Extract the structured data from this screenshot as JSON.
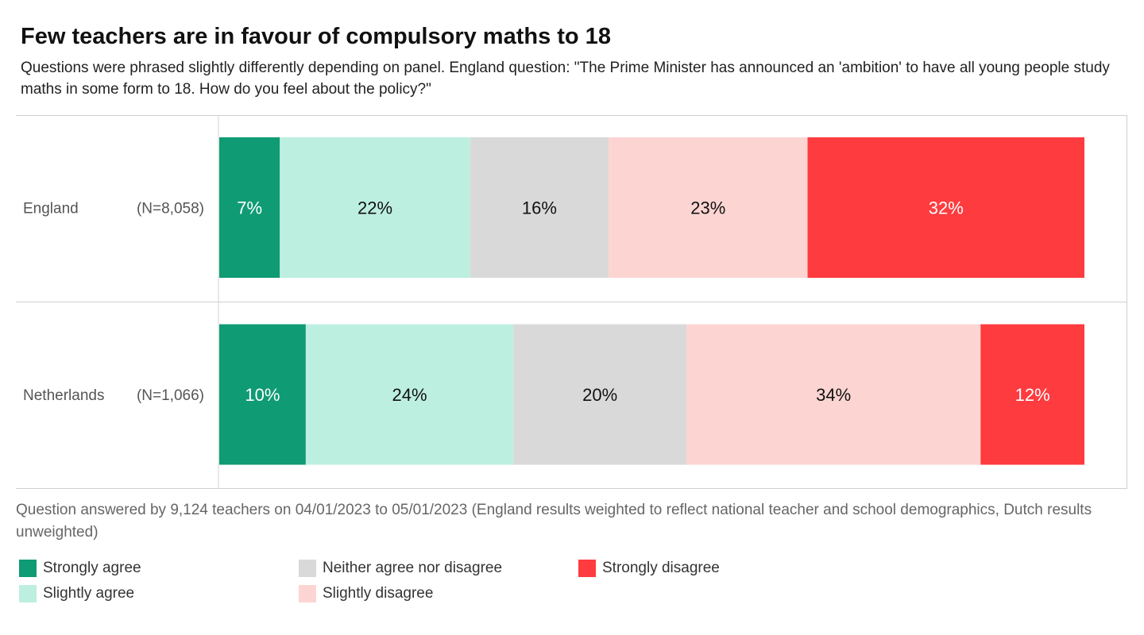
{
  "chart_data": {
    "type": "bar",
    "orientation": "horizontal",
    "stacked": true,
    "title": "Few teachers are in favour of compulsory maths to 18",
    "subtitle": "Questions were phrased slightly differently depending on panel. England question: \"The Prime Minister has announced an 'ambition' to have all young people study maths in some form to 18. How do you feel about the policy?\"",
    "categories": [
      {
        "name": "England",
        "n": "(N=8,058)"
      },
      {
        "name": "Netherlands",
        "n": "(N=1,066)"
      }
    ],
    "series": [
      {
        "name": "Strongly agree",
        "color": "#0f9b74",
        "text_color": "#ffffff",
        "values": [
          7,
          10
        ],
        "labels": [
          "7%",
          "10%"
        ]
      },
      {
        "name": "Slightly agree",
        "color": "#bdefe0",
        "text_color": "#111111",
        "values": [
          22,
          24
        ],
        "labels": [
          "22%",
          "24%"
        ]
      },
      {
        "name": "Neither agree nor disagree",
        "color": "#d9d9d9",
        "text_color": "#111111",
        "values": [
          16,
          20
        ],
        "labels": [
          "16%",
          "20%"
        ]
      },
      {
        "name": "Slightly disagree",
        "color": "#fcd5d2",
        "text_color": "#111111",
        "values": [
          23,
          34
        ],
        "labels": [
          "23%",
          "34%"
        ]
      },
      {
        "name": "Strongly disagree",
        "color": "#fe3b3f",
        "text_color": "#ffffff",
        "values": [
          32,
          12
        ],
        "labels": [
          "32%",
          "12%"
        ]
      }
    ],
    "xlim": [
      0,
      100
    ],
    "grid": false,
    "legend_position": "bottom",
    "footnote": "Question answered by 9,124 teachers on 04/01/2023 to 05/01/2023 (England results weighted to reflect national teacher and school demographics, Dutch results unweighted)"
  }
}
